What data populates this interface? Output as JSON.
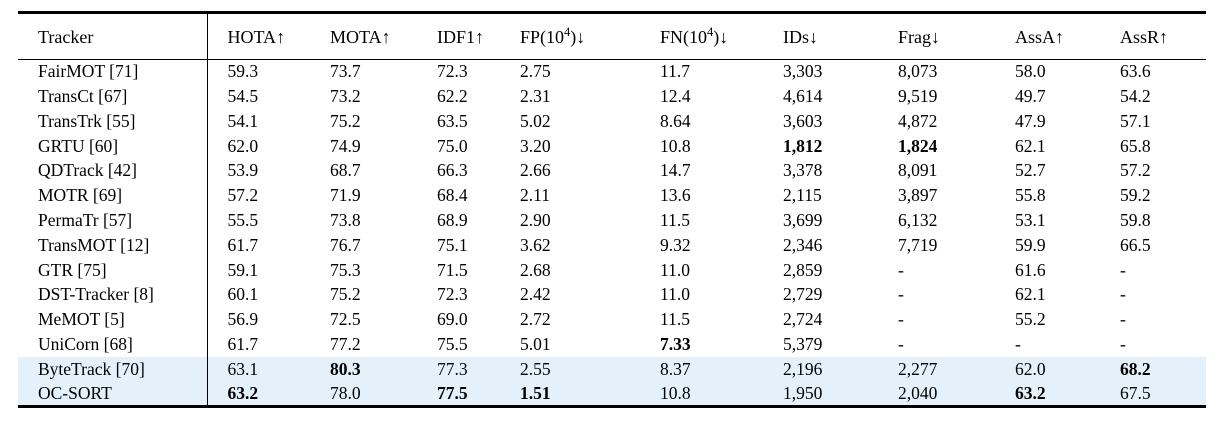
{
  "colors": {
    "page_background": "#ffffff",
    "highlight_row_background": "#e4f1fa",
    "rule_color": "#000000",
    "text_color": "#000000"
  },
  "table": {
    "headers": [
      {
        "text": "Tracker",
        "sup": "",
        "suffix": ""
      },
      {
        "text": "HOTA",
        "sup": "",
        "suffix": "↑"
      },
      {
        "text": "MOTA",
        "sup": "",
        "suffix": "↑"
      },
      {
        "text": "IDF1",
        "sup": "",
        "suffix": "↑"
      },
      {
        "text": "FP(10",
        "sup": "4",
        "suffix": ")↓"
      },
      {
        "text": "FN(10",
        "sup": "4",
        "suffix": ")↓"
      },
      {
        "text": "IDs",
        "sup": "",
        "suffix": "↓"
      },
      {
        "text": "Frag",
        "sup": "",
        "suffix": "↓"
      },
      {
        "text": "AssA",
        "sup": "",
        "suffix": "↑"
      },
      {
        "text": "AssR",
        "sup": "",
        "suffix": "↑"
      }
    ],
    "rows": [
      {
        "tracker": "FairMOT [71]",
        "values": [
          "59.3",
          "73.7",
          "72.3",
          "2.75",
          "11.7",
          "3,303",
          "8,073",
          "58.0",
          "63.6"
        ],
        "bold": [],
        "highlight": false
      },
      {
        "tracker": "TransCt [67]",
        "values": [
          "54.5",
          "73.2",
          "62.2",
          "2.31",
          "12.4",
          "4,614",
          "9,519",
          "49.7",
          "54.2"
        ],
        "bold": [],
        "highlight": false
      },
      {
        "tracker": "TransTrk [55]",
        "values": [
          "54.1",
          "75.2",
          "63.5",
          "5.02",
          "8.64",
          "3,603",
          "4,872",
          "47.9",
          "57.1"
        ],
        "bold": [],
        "highlight": false
      },
      {
        "tracker": "GRTU [60]",
        "values": [
          "62.0",
          "74.9",
          "75.0",
          "3.20",
          "10.8",
          "1,812",
          "1,824",
          "62.1",
          "65.8"
        ],
        "bold": [
          5,
          6
        ],
        "highlight": false
      },
      {
        "tracker": "QDTrack [42]",
        "values": [
          "53.9",
          "68.7",
          "66.3",
          "2.66",
          "14.7",
          "3,378",
          "8,091",
          "52.7",
          "57.2"
        ],
        "bold": [],
        "highlight": false
      },
      {
        "tracker": "MOTR [69]",
        "values": [
          "57.2",
          "71.9",
          "68.4",
          "2.11",
          "13.6",
          "2,115",
          "3,897",
          "55.8",
          "59.2"
        ],
        "bold": [],
        "highlight": false
      },
      {
        "tracker": "PermaTr [57]",
        "values": [
          "55.5",
          "73.8",
          "68.9",
          "2.90",
          "11.5",
          "3,699",
          "6,132",
          "53.1",
          "59.8"
        ],
        "bold": [],
        "highlight": false
      },
      {
        "tracker": "TransMOT [12]",
        "values": [
          "61.7",
          "76.7",
          "75.1",
          "3.62",
          "9.32",
          "2,346",
          "7,719",
          "59.9",
          "66.5"
        ],
        "bold": [],
        "highlight": false
      },
      {
        "tracker": "GTR [75]",
        "values": [
          "59.1",
          "75.3",
          "71.5",
          "2.68",
          "11.0",
          "2,859",
          "-",
          "61.6",
          "-"
        ],
        "bold": [],
        "highlight": false
      },
      {
        "tracker": "DST-Tracker [8]",
        "values": [
          "60.1",
          "75.2",
          "72.3",
          "2.42",
          "11.0",
          "2,729",
          "-",
          "62.1",
          "-"
        ],
        "bold": [],
        "highlight": false
      },
      {
        "tracker": "MeMOT [5]",
        "values": [
          "56.9",
          "72.5",
          "69.0",
          "2.72",
          "11.5",
          "2,724",
          "-",
          "55.2",
          "-"
        ],
        "bold": [],
        "highlight": false
      },
      {
        "tracker": "UniCorn [68]",
        "values": [
          "61.7",
          "77.2",
          "75.5",
          "5.01",
          "7.33",
          "5,379",
          "-",
          "-",
          "-"
        ],
        "bold": [
          4
        ],
        "highlight": false
      },
      {
        "tracker": "ByteTrack [70]",
        "values": [
          "63.1",
          "80.3",
          "77.3",
          "2.55",
          "8.37",
          "2,196",
          "2,277",
          "62.0",
          "68.2"
        ],
        "bold": [
          1,
          8
        ],
        "highlight": true
      },
      {
        "tracker": "OC-SORT",
        "values": [
          "63.2",
          "78.0",
          "77.5",
          "1.51",
          "10.8",
          "1,950",
          "2,040",
          "63.2",
          "67.5"
        ],
        "bold": [
          0,
          2,
          3,
          7
        ],
        "highlight": true
      }
    ]
  }
}
